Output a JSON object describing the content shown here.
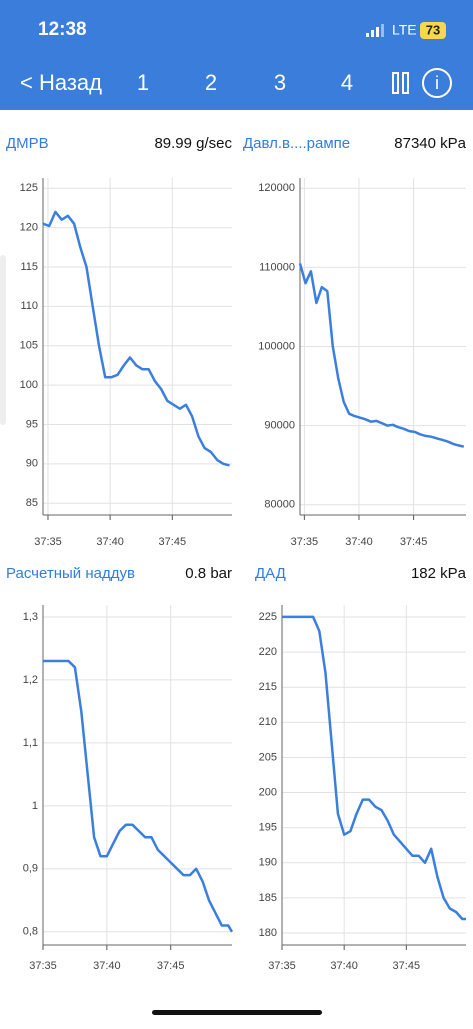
{
  "header": {
    "time": "12:38",
    "network": "LTE",
    "battery": "73",
    "back": "< Назад",
    "tabs": [
      "1",
      "2",
      "3",
      "4"
    ]
  },
  "chart_data": [
    {
      "type": "line",
      "title": "ДМРВ",
      "reading": "89.99 g/sec",
      "color": "#3a7fe0",
      "x": [
        34.6,
        35.1,
        35.6,
        36.1,
        36.6,
        37.1,
        37.6,
        38.1,
        38.6,
        39.1,
        39.6,
        40.1,
        40.6,
        41.1,
        41.6,
        42.1,
        42.6,
        43.1,
        43.6,
        44.1,
        44.6,
        45.1,
        45.6,
        46.1,
        46.6,
        47.1,
        47.6,
        48.1,
        48.6,
        49.1,
        49.6
      ],
      "values": [
        120.5,
        120.2,
        122,
        121,
        121.5,
        120.5,
        117.5,
        115,
        110,
        105,
        101,
        101,
        101.3,
        102.5,
        103.5,
        102.5,
        102,
        102,
        100.5,
        99.5,
        98,
        97.5,
        97,
        97.5,
        96,
        93.5,
        92,
        91.5,
        90.5,
        90,
        89.8
      ],
      "xlim": [
        34.6,
        49.8
      ],
      "ylim": [
        83.5,
        126.3
      ],
      "xticks": [
        {
          "value": 35,
          "label": "37:35"
        },
        {
          "value": 40,
          "label": "37:40"
        },
        {
          "value": 45,
          "label": "37:45"
        }
      ],
      "yticks": [
        85,
        90,
        95,
        100,
        105,
        110,
        115,
        120,
        125
      ],
      "grid": true
    },
    {
      "type": "line",
      "title": "Давл.в....рампе",
      "reading": "87340 kPa",
      "color": "#3a7fe0",
      "x": [
        34.6,
        35.1,
        35.6,
        36.1,
        36.6,
        37.1,
        37.6,
        38.1,
        38.6,
        39.1,
        39.6,
        40.1,
        40.6,
        41.1,
        41.6,
        42.1,
        42.6,
        43.1,
        43.6,
        44.1,
        44.6,
        45.1,
        45.6,
        46.1,
        46.6,
        47.1,
        47.6,
        48.1,
        48.6,
        49.1,
        49.6
      ],
      "values": [
        110500,
        108000,
        109500,
        105500,
        107500,
        107000,
        100000,
        96000,
        93000,
        91500,
        91200,
        91000,
        90800,
        90500,
        90600,
        90300,
        90000,
        90100,
        89800,
        89600,
        89300,
        89200,
        88900,
        88700,
        88600,
        88400,
        88200,
        88000,
        87700,
        87500,
        87340
      ],
      "xlim": [
        34.6,
        49.8
      ],
      "ylim": [
        78700,
        121300
      ],
      "xticks": [
        {
          "value": 35,
          "label": "37:35"
        },
        {
          "value": 40,
          "label": "37:40"
        },
        {
          "value": 45,
          "label": "37:45"
        }
      ],
      "yticks": [
        80000,
        90000,
        100000,
        110000,
        120000
      ],
      "grid": true
    },
    {
      "type": "line",
      "title": "Расчетный наддув",
      "reading": "0.8 bar",
      "color": "#3a7fe0",
      "x": [
        35,
        35.5,
        36,
        36.5,
        37,
        37.5,
        38,
        38.5,
        39,
        39.5,
        40,
        40.5,
        41,
        41.5,
        42,
        42.5,
        43,
        43.5,
        44,
        44.5,
        45,
        45.5,
        46,
        46.5,
        47,
        47.5,
        48,
        48.5,
        49,
        49.5,
        49.8
      ],
      "values": [
        1.23,
        1.23,
        1.23,
        1.23,
        1.23,
        1.22,
        1.15,
        1.05,
        0.95,
        0.92,
        0.92,
        0.94,
        0.96,
        0.97,
        0.97,
        0.96,
        0.95,
        0.95,
        0.93,
        0.92,
        0.91,
        0.9,
        0.89,
        0.89,
        0.9,
        0.88,
        0.85,
        0.83,
        0.81,
        0.81,
        0.8
      ],
      "xlim": [
        35,
        49.8
      ],
      "ylim": [
        0.779,
        1.319
      ],
      "xticks": [
        {
          "value": 35,
          "label": "37:35"
        },
        {
          "value": 40,
          "label": "37:40"
        },
        {
          "value": 45,
          "label": "37:45"
        }
      ],
      "yticks": [
        {
          "value": 0.8,
          "label": "0,8"
        },
        {
          "value": 0.9,
          "label": "0,9"
        },
        {
          "value": 1,
          "label": "1"
        },
        {
          "value": 1.1,
          "label": "1,1"
        },
        {
          "value": 1.2,
          "label": "1,2"
        },
        {
          "value": 1.3,
          "label": "1,3"
        }
      ],
      "grid": true
    },
    {
      "type": "line",
      "title": "ДАД",
      "reading": "182 kPa",
      "color": "#3a7fe0",
      "x": [
        35,
        35.5,
        36,
        36.5,
        37,
        37.5,
        38,
        38.5,
        39,
        39.5,
        40,
        40.5,
        41,
        41.5,
        42,
        42.5,
        43,
        43.5,
        44,
        44.5,
        45,
        45.5,
        46,
        46.5,
        47,
        47.5,
        48,
        48.5,
        49,
        49.5,
        49.8
      ],
      "values": [
        225,
        225,
        225,
        225,
        225,
        225,
        223,
        217,
        207,
        197,
        194,
        194.5,
        197,
        199,
        199,
        198,
        197.5,
        196,
        194,
        193,
        192,
        191,
        191,
        190,
        192,
        188,
        185,
        183.5,
        183,
        182,
        182
      ],
      "xlim": [
        35,
        49.8
      ],
      "ylim": [
        178.3,
        226.7
      ],
      "xticks": [
        {
          "value": 35,
          "label": "37:35"
        },
        {
          "value": 40,
          "label": "37:40"
        },
        {
          "value": 45,
          "label": "37:45"
        }
      ],
      "yticks": [
        180,
        185,
        190,
        195,
        200,
        205,
        210,
        215,
        220,
        225
      ],
      "grid": true
    }
  ]
}
